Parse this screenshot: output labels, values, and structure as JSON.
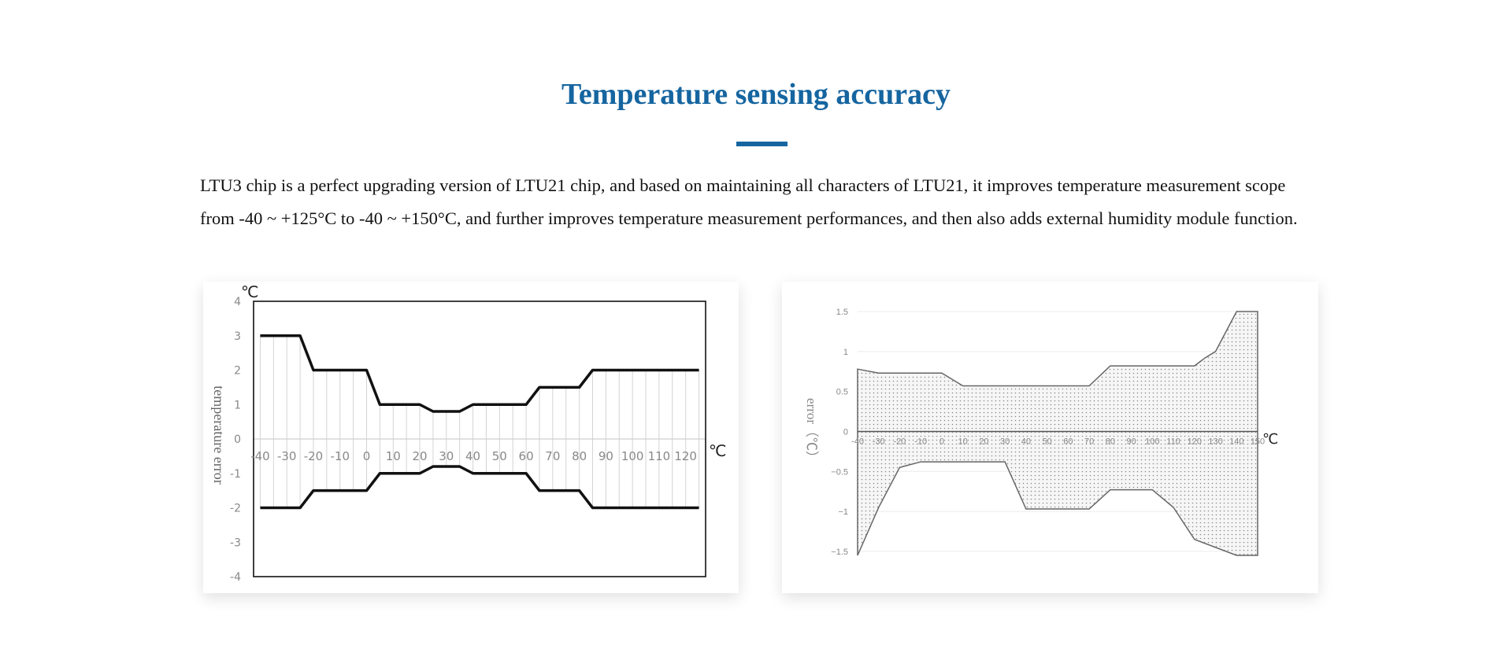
{
  "title": "Temperature sensing accuracy",
  "description": "LTU3 chip is a perfect upgrading version of LTU21 chip, and based on maintaining all characters of LTU21, it improves temperature measurement scope from -40 ~ +125°C to -40 ~ +150°C, and further improves temperature measurement performances, and then also adds external humidity module function.",
  "accent_color": "#1565a0",
  "chart_data": [
    {
      "type": "line",
      "ylabel": "temperature error",
      "yunit": "℃",
      "xunit": "℃",
      "xlim": [
        -42.5,
        127.5
      ],
      "ylim": [
        -4,
        4
      ],
      "xticks": [
        -40,
        -30,
        -20,
        -10,
        0,
        10,
        20,
        30,
        40,
        50,
        60,
        70,
        80,
        90,
        100,
        110,
        120
      ],
      "yticks": [
        4,
        3,
        2,
        1,
        0,
        -1,
        -2,
        -3,
        -4
      ],
      "grid": "vertical lines every 5 between curves",
      "series": [
        {
          "x": [
            -40,
            -25,
            -20,
            0,
            5,
            20,
            25,
            35,
            40,
            60,
            65,
            80,
            85,
            125
          ],
          "y": [
            3,
            3,
            2,
            2,
            1,
            1,
            0.8,
            0.8,
            1,
            1,
            1.5,
            1.5,
            2,
            2
          ]
        },
        {
          "x": [
            -40,
            -25,
            -20,
            0,
            5,
            20,
            25,
            35,
            40,
            60,
            65,
            80,
            85,
            125
          ],
          "y": [
            -2,
            -2,
            -1.5,
            -1.5,
            -1,
            -1,
            -0.8,
            -0.8,
            -1,
            -1,
            -1.5,
            -1.5,
            -2,
            -2
          ]
        }
      ]
    },
    {
      "type": "area",
      "ylabel": "error（℃）",
      "xunit": "℃",
      "xlim": [
        -40,
        150
      ],
      "ylim": [
        -1.55,
        1.5
      ],
      "xticks": [
        -40,
        -30,
        -20,
        -10,
        0,
        10,
        20,
        30,
        40,
        50,
        60,
        70,
        80,
        90,
        100,
        110,
        120,
        130,
        140,
        150
      ],
      "yticks": [
        1.5,
        1,
        0.5,
        0,
        -0.5,
        -1,
        -1.5
      ],
      "ytick_labels": [
        "1.5",
        "1",
        "0.5",
        "0",
        "−0.5",
        "−1",
        "−1.5"
      ],
      "grid": "horizontal",
      "fill": "dotted",
      "series": [
        {
          "x": [
            -40,
            -30,
            0,
            10,
            70,
            80,
            120,
            125,
            130,
            135,
            140,
            150
          ],
          "y": [
            0.78,
            0.73,
            0.73,
            0.57,
            0.57,
            0.82,
            0.82,
            0.92,
            1.0,
            1.25,
            1.5,
            1.5
          ]
        },
        {
          "x": [
            -40,
            -30,
            -20,
            -10,
            30,
            40,
            70,
            80,
            100,
            110,
            120,
            140,
            150
          ],
          "y": [
            -1.55,
            -0.95,
            -0.45,
            -0.38,
            -0.38,
            -0.97,
            -0.97,
            -0.73,
            -0.73,
            -0.95,
            -1.35,
            -1.55,
            -1.55
          ]
        }
      ]
    }
  ]
}
